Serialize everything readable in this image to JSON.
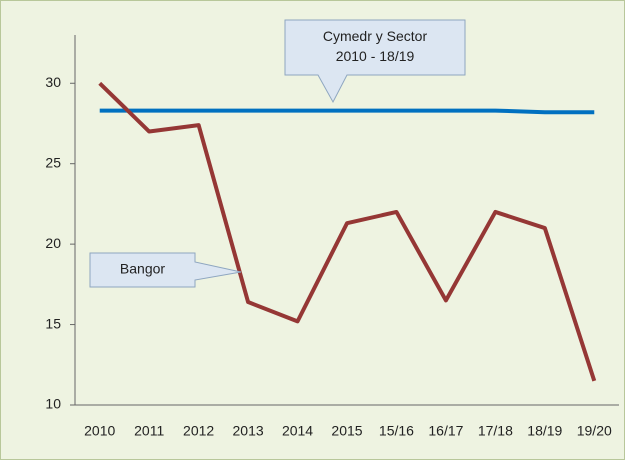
{
  "chart_data": {
    "type": "line",
    "categories": [
      "2010",
      "2011",
      "2012",
      "2013",
      "2014",
      "2015",
      "15/16",
      "16/17",
      "17/18",
      "18/19",
      "19/20"
    ],
    "series": [
      {
        "name": "Bangor",
        "color": "#953735",
        "values": [
          30,
          27,
          27.4,
          16.4,
          15.2,
          21.3,
          22,
          16.5,
          22,
          21,
          11.5
        ]
      },
      {
        "name": "Cymedr y Sector 2010 - 18/19",
        "color": "#0070c0",
        "values": [
          28.3,
          28.3,
          28.3,
          28.3,
          28.3,
          28.3,
          28.3,
          28.3,
          28.3,
          28.2,
          28.2
        ]
      }
    ],
    "annotations": [
      {
        "lines": [
          "Cymedr y Sector",
          "2010 - 18/19"
        ]
      },
      {
        "lines": [
          "Bangor"
        ]
      }
    ],
    "ylim": [
      10,
      33
    ],
    "yticks": [
      10,
      15,
      20,
      25,
      30
    ],
    "grid": false
  }
}
